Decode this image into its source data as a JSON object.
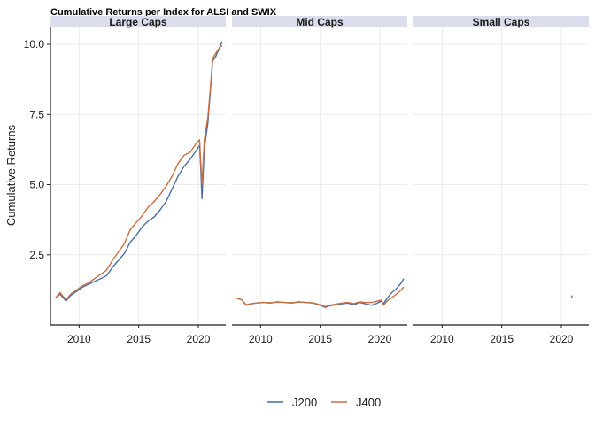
{
  "chart_data": {
    "type": "line",
    "title": "Cumulative Returns per Index for ALSI and SWIX",
    "ylabel": "Cumulative Returns",
    "xlabel": "",
    "x_ticks": [
      2010,
      2015,
      2020
    ],
    "y_ticks": [
      "2.5",
      "5.0",
      "7.5",
      "10.0"
    ],
    "xlim": [
      2007.6,
      2022.3
    ],
    "ylim": [
      0.0,
      10.6
    ],
    "legend_position": "bottom",
    "colors": {
      "J200": "#4A6FA5",
      "J400": "#C96F43"
    },
    "panels": [
      {
        "name": "Large_Caps",
        "series": [
          {
            "name": "J200",
            "x": [
              2008.0,
              2008.4,
              2008.9,
              2009.3,
              2009.8,
              2010.3,
              2010.8,
              2011.3,
              2011.8,
              2012.3,
              2012.8,
              2013.3,
              2013.8,
              2014.3,
              2014.8,
              2015.3,
              2015.8,
              2016.3,
              2016.8,
              2017.3,
              2017.8,
              2018.3,
              2018.8,
              2019.3,
              2019.8,
              2020.1,
              2020.2,
              2020.3,
              2020.5,
              2020.8,
              2021.0,
              2021.2,
              2021.5,
              2021.8,
              2022.0
            ],
            "y": [
              0.95,
              1.1,
              0.85,
              1.05,
              1.2,
              1.35,
              1.45,
              1.55,
              1.65,
              1.75,
              2.05,
              2.3,
              2.55,
              2.95,
              3.2,
              3.5,
              3.7,
              3.85,
              4.1,
              4.4,
              4.85,
              5.3,
              5.65,
              5.9,
              6.2,
              6.4,
              5.6,
              4.5,
              6.3,
              7.2,
              8.3,
              9.4,
              9.6,
              9.9,
              10.1
            ]
          },
          {
            "name": "J400",
            "x": [
              2008.0,
              2008.4,
              2008.9,
              2009.3,
              2009.8,
              2010.3,
              2010.8,
              2011.3,
              2011.8,
              2012.3,
              2012.8,
              2013.3,
              2013.8,
              2014.3,
              2014.8,
              2015.3,
              2015.8,
              2016.3,
              2016.8,
              2017.3,
              2017.8,
              2018.3,
              2018.8,
              2019.3,
              2019.8,
              2020.1,
              2020.2,
              2020.3,
              2020.5,
              2020.8,
              2021.0,
              2021.2,
              2021.5,
              2021.8,
              2022.0
            ],
            "y": [
              0.95,
              1.15,
              0.9,
              1.1,
              1.25,
              1.4,
              1.5,
              1.65,
              1.8,
              1.95,
              2.3,
              2.6,
              2.9,
              3.4,
              3.65,
              3.9,
              4.2,
              4.4,
              4.65,
              4.95,
              5.3,
              5.75,
              6.05,
              6.15,
              6.45,
              6.6,
              5.8,
              5.0,
              6.6,
              7.4,
              8.4,
              9.5,
              9.7,
              9.9,
              9.95
            ]
          }
        ]
      },
      {
        "name": "Mid_Caps",
        "series": [
          {
            "name": "J200",
            "x": [
              2008.0,
              2008.4,
              2008.8,
              2009.2,
              2009.6,
              2010.2,
              2010.8,
              2011.4,
              2012.0,
              2012.6,
              2013.2,
              2013.8,
              2014.4,
              2015.0,
              2015.4,
              2015.8,
              2016.3,
              2016.8,
              2017.3,
              2017.8,
              2018.3,
              2018.8,
              2019.3,
              2019.8,
              2020.1,
              2020.3,
              2020.6,
              2021.0,
              2021.4,
              2021.8,
              2022.0
            ],
            "y": [
              0.95,
              0.9,
              0.7,
              0.75,
              0.78,
              0.8,
              0.78,
              0.82,
              0.8,
              0.78,
              0.82,
              0.8,
              0.78,
              0.7,
              0.62,
              0.68,
              0.72,
              0.75,
              0.78,
              0.72,
              0.8,
              0.75,
              0.7,
              0.78,
              0.85,
              0.75,
              0.95,
              1.15,
              1.3,
              1.5,
              1.65
            ]
          },
          {
            "name": "J400",
            "x": [
              2008.0,
              2008.4,
              2008.8,
              2009.2,
              2009.6,
              2010.2,
              2010.8,
              2011.4,
              2012.0,
              2012.6,
              2013.2,
              2013.8,
              2014.4,
              2015.0,
              2015.4,
              2015.8,
              2016.3,
              2016.8,
              2017.3,
              2017.8,
              2018.3,
              2018.8,
              2019.3,
              2019.8,
              2020.1,
              2020.3,
              2020.6,
              2021.0,
              2021.4,
              2021.8,
              2022.0
            ],
            "y": [
              0.95,
              0.9,
              0.72,
              0.76,
              0.78,
              0.8,
              0.79,
              0.82,
              0.8,
              0.79,
              0.82,
              0.8,
              0.79,
              0.72,
              0.65,
              0.7,
              0.74,
              0.78,
              0.8,
              0.76,
              0.82,
              0.8,
              0.8,
              0.85,
              0.88,
              0.7,
              0.85,
              0.98,
              1.1,
              1.25,
              1.35
            ]
          }
        ]
      },
      {
        "name": "Small_Caps",
        "series": [
          {
            "name": "J200",
            "x": [
              2020.85,
              2020.9
            ],
            "y": [
              1.05,
              0.98
            ]
          },
          {
            "name": "J400",
            "x": [
              2020.85,
              2020.9
            ],
            "y": [
              1.02,
              0.96
            ]
          }
        ]
      }
    ]
  }
}
